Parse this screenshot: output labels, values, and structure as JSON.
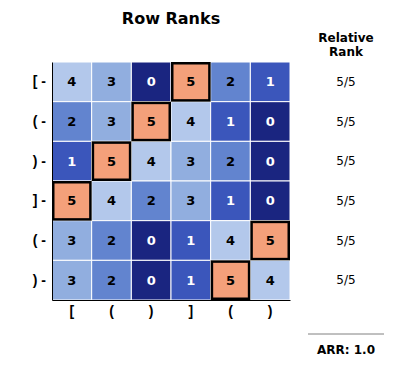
{
  "chart_data": {
    "type": "heatmap",
    "title": "Row Ranks",
    "categories": [
      "[",
      "(",
      ")",
      "]",
      "(",
      ")"
    ],
    "row_labels": [
      "[ -",
      "( -",
      ") -",
      "] -",
      "( -",
      ") -"
    ],
    "cells": [
      [
        4,
        3,
        0,
        5,
        2,
        1
      ],
      [
        2,
        3,
        5,
        4,
        1,
        0
      ],
      [
        1,
        5,
        4,
        3,
        2,
        0
      ],
      [
        5,
        4,
        2,
        3,
        1,
        0
      ],
      [
        3,
        2,
        0,
        1,
        4,
        5
      ],
      [
        3,
        2,
        0,
        1,
        5,
        4
      ]
    ],
    "zlim": [
      0,
      5
    ],
    "colorscale": [
      [
        0.0,
        "#1a2580"
      ],
      [
        0.1,
        "#2b3fae"
      ],
      [
        0.3,
        "#4a6cc7"
      ],
      [
        0.5,
        "#7a9cd6"
      ],
      [
        0.7,
        "#a8c0e8"
      ],
      [
        1.0,
        "#c8d8f2"
      ]
    ],
    "highlighted_cells": [
      [
        0,
        3
      ],
      [
        1,
        2
      ],
      [
        2,
        1
      ],
      [
        3,
        0
      ],
      [
        4,
        5
      ],
      [
        5,
        4
      ]
    ],
    "highlight_color": "#F4A07A",
    "data_labels": true,
    "side_title": "Relative\nRank",
    "side_labels": [
      "5/5",
      "5/5",
      "5/5",
      "5/5",
      "5/5",
      "5/5"
    ],
    "footnote": "ARR: 1.0"
  }
}
